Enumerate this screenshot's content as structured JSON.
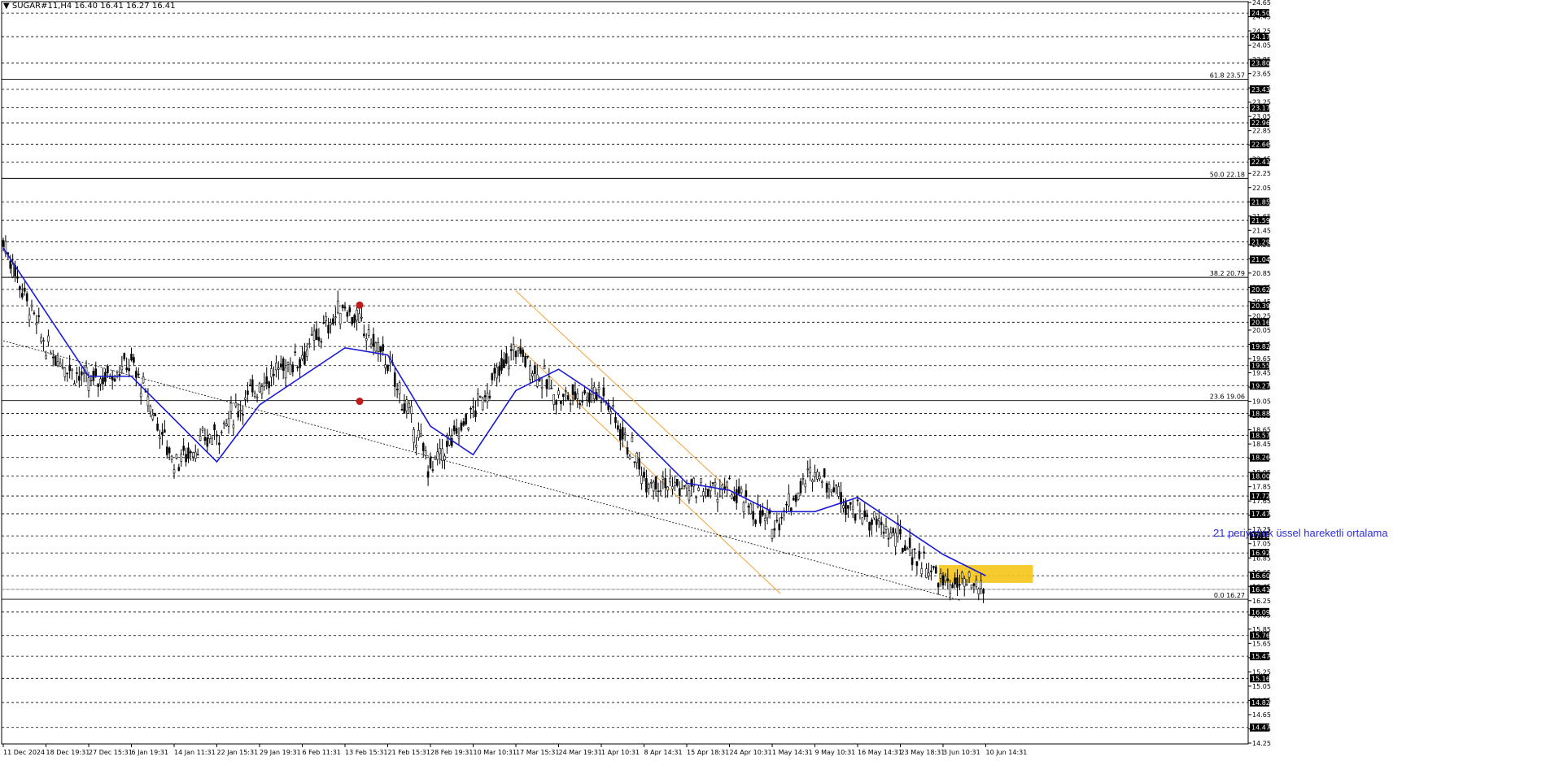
{
  "header": {
    "symbol_line": "▼ SUGAR#11,H4  16.40 16.41 16.27 16.41"
  },
  "annotation": {
    "ema_label": "21 periyotluk üssel hareketli ortalama"
  },
  "colors": {
    "background": "#ffffff",
    "grid_dash": "#000000",
    "ema": "#1b1bd6",
    "channel": "#f4a23c",
    "trendline": "#000000",
    "fib_line": "#000000",
    "zone": "#f5c518",
    "marker": "#c21b1b",
    "price_label_bg": "#000000",
    "price_label_fg": "#ffffff",
    "candle": "#000000"
  },
  "chart_data": {
    "type": "candlestick",
    "instrument": "SUGAR#11",
    "timeframe": "H4",
    "ylim": [
      14.25,
      24.65
    ],
    "x_tick_labels": [
      "11 Dec 2024",
      "18 Dec 19:31",
      "27 Dec 15:31",
      "6 Jan 19:31",
      "14 Jan 11:31",
      "22 Jan 15:31",
      "29 Jan 19:31",
      "6 Feb 11:31",
      "13 Feb 15:31",
      "21 Feb 15:31",
      "28 Feb 19:31",
      "10 Mar 10:31",
      "17 Mar 15:31",
      "24 Mar 19:31",
      "1 Apr 10:31",
      "8 Apr 14:31",
      "15 Apr 18:31",
      "24 Apr 10:31",
      "1 May 14:31",
      "9 May 10:31",
      "16 May 14:31",
      "23 May 18:31",
      "3 Jun 10:31",
      "10 Jun 14:31"
    ],
    "y_tick_labels": [
      "24.65",
      "24.45",
      "24.25",
      "24.05",
      "23.85",
      "23.65",
      "23.45",
      "23.25",
      "23.05",
      "22.85",
      "22.65",
      "22.45",
      "22.25",
      "22.05",
      "21.85",
      "21.65",
      "21.45",
      "21.25",
      "21.05",
      "20.85",
      "20.65",
      "20.45",
      "20.25",
      "20.05",
      "19.85",
      "19.65",
      "19.45",
      "19.25",
      "19.05",
      "18.85",
      "18.65",
      "18.45",
      "18.25",
      "18.05",
      "17.85",
      "17.65",
      "17.45",
      "17.25",
      "17.05",
      "16.85",
      "16.65",
      "16.45",
      "16.25",
      "16.05",
      "15.85",
      "15.65",
      "15.45",
      "15.25",
      "15.05",
      "14.85",
      "14.65",
      "14.45",
      "14.25"
    ],
    "horizontal_levels": [
      24.5,
      24.17,
      23.8,
      23.43,
      23.17,
      22.96,
      22.66,
      22.41,
      21.85,
      21.59,
      21.29,
      21.04,
      20.62,
      20.39,
      20.16,
      19.82,
      19.55,
      19.27,
      18.88,
      18.57,
      18.26,
      18.0,
      17.72,
      17.47,
      17.16,
      16.92,
      16.6,
      16.41,
      16.09,
      15.76,
      15.47,
      15.16,
      14.82,
      14.47
    ],
    "current_price": 16.41,
    "fibonacci": [
      {
        "level": "61.8",
        "price": 23.57,
        "label": "61.8 23.57"
      },
      {
        "level": "50.0",
        "price": 22.18,
        "label": "50.0 22.18"
      },
      {
        "level": "38.2",
        "price": 20.79,
        "label": "38.2 20.79"
      },
      {
        "level": "23.6",
        "price": 19.06,
        "label": "23.6 19.06"
      },
      {
        "level": "0.0",
        "price": 16.27,
        "label": "0.0 16.27"
      }
    ],
    "price_path": [
      {
        "x": "11 Dec 2024",
        "y": 21.3
      },
      {
        "x": "18 Dec 19:31",
        "y": 19.8
      },
      {
        "x": "27 Dec 15:31",
        "y": 19.3
      },
      {
        "x": "6 Jan 19:31",
        "y": 19.6
      },
      {
        "x": "14 Jan 11:31",
        "y": 18.2
      },
      {
        "x": "22 Jan 15:31",
        "y": 18.6
      },
      {
        "x": "29 Jan 19:31",
        "y": 19.3
      },
      {
        "x": "6 Feb 11:31",
        "y": 19.7
      },
      {
        "x": "13 Feb 15:31",
        "y": 20.4
      },
      {
        "x": "21 Feb 15:31",
        "y": 19.6
      },
      {
        "x": "28 Feb 19:31",
        "y": 18.1
      },
      {
        "x": "10 Mar 10:31",
        "y": 18.9
      },
      {
        "x": "17 Mar 15:31",
        "y": 19.8
      },
      {
        "x": "24 Mar 19:31",
        "y": 19.1
      },
      {
        "x": "1 Apr 10:31",
        "y": 19.2
      },
      {
        "x": "8 Apr 14:31",
        "y": 18.0
      },
      {
        "x": "15 Apr 18:31",
        "y": 17.8
      },
      {
        "x": "24 Apr 10:31",
        "y": 17.8
      },
      {
        "x": "1 May 14:31",
        "y": 17.3
      },
      {
        "x": "9 May 10:31",
        "y": 18.1
      },
      {
        "x": "16 May 14:31",
        "y": 17.5
      },
      {
        "x": "23 May 18:31",
        "y": 17.1
      },
      {
        "x": "3 Jun 10:31",
        "y": 16.5
      },
      {
        "x": "10 Jun 14:31",
        "y": 16.41
      }
    ],
    "ema_21": [
      {
        "x": "11 Dec 2024",
        "y": 21.2
      },
      {
        "x": "18 Dec 19:31",
        "y": 20.3
      },
      {
        "x": "27 Dec 15:31",
        "y": 19.4
      },
      {
        "x": "6 Jan 19:31",
        "y": 19.4
      },
      {
        "x": "14 Jan 11:31",
        "y": 18.8
      },
      {
        "x": "22 Jan 15:31",
        "y": 18.2
      },
      {
        "x": "29 Jan 19:31",
        "y": 19.0
      },
      {
        "x": "6 Feb 11:31",
        "y": 19.4
      },
      {
        "x": "13 Feb 15:31",
        "y": 19.8
      },
      {
        "x": "21 Feb 15:31",
        "y": 19.7
      },
      {
        "x": "28 Feb 19:31",
        "y": 18.7
      },
      {
        "x": "10 Mar 10:31",
        "y": 18.3
      },
      {
        "x": "17 Mar 15:31",
        "y": 19.2
      },
      {
        "x": "24 Mar 19:31",
        "y": 19.5
      },
      {
        "x": "1 Apr 10:31",
        "y": 19.1
      },
      {
        "x": "8 Apr 14:31",
        "y": 18.5
      },
      {
        "x": "15 Apr 18:31",
        "y": 17.9
      },
      {
        "x": "24 Apr 10:31",
        "y": 17.8
      },
      {
        "x": "1 May 14:31",
        "y": 17.5
      },
      {
        "x": "9 May 10:31",
        "y": 17.5
      },
      {
        "x": "16 May 14:31",
        "y": 17.7
      },
      {
        "x": "23 May 18:31",
        "y": 17.3
      },
      {
        "x": "3 Jun 10:31",
        "y": 16.9
      },
      {
        "x": "10 Jun 14:31",
        "y": 16.6
      }
    ],
    "drawings": {
      "descending_trendline": [
        {
          "x": "11 Dec 2024",
          "y": 19.9
        },
        {
          "x": "10 Jun 14:31",
          "y": 16.25
        }
      ],
      "channel_upper": [
        {
          "x": "17 Mar 15:31",
          "y": 20.6
        },
        {
          "x": "24 Apr 10:31",
          "y": 17.7
        }
      ],
      "channel_lower": [
        {
          "x": "17 Mar 15:31",
          "y": 19.85
        },
        {
          "x": "1 May 14:31",
          "y": 16.35
        }
      ],
      "highlight_zone": {
        "x_from": "3 Jun 10:31",
        "x_to": "10 Jun 14:31",
        "y_from": 16.5,
        "y_to": 16.75
      },
      "markers": [
        {
          "x": "13 Feb 15:31",
          "y": 20.4
        },
        {
          "x": "13 Feb 15:31",
          "y": 19.05
        }
      ]
    }
  }
}
